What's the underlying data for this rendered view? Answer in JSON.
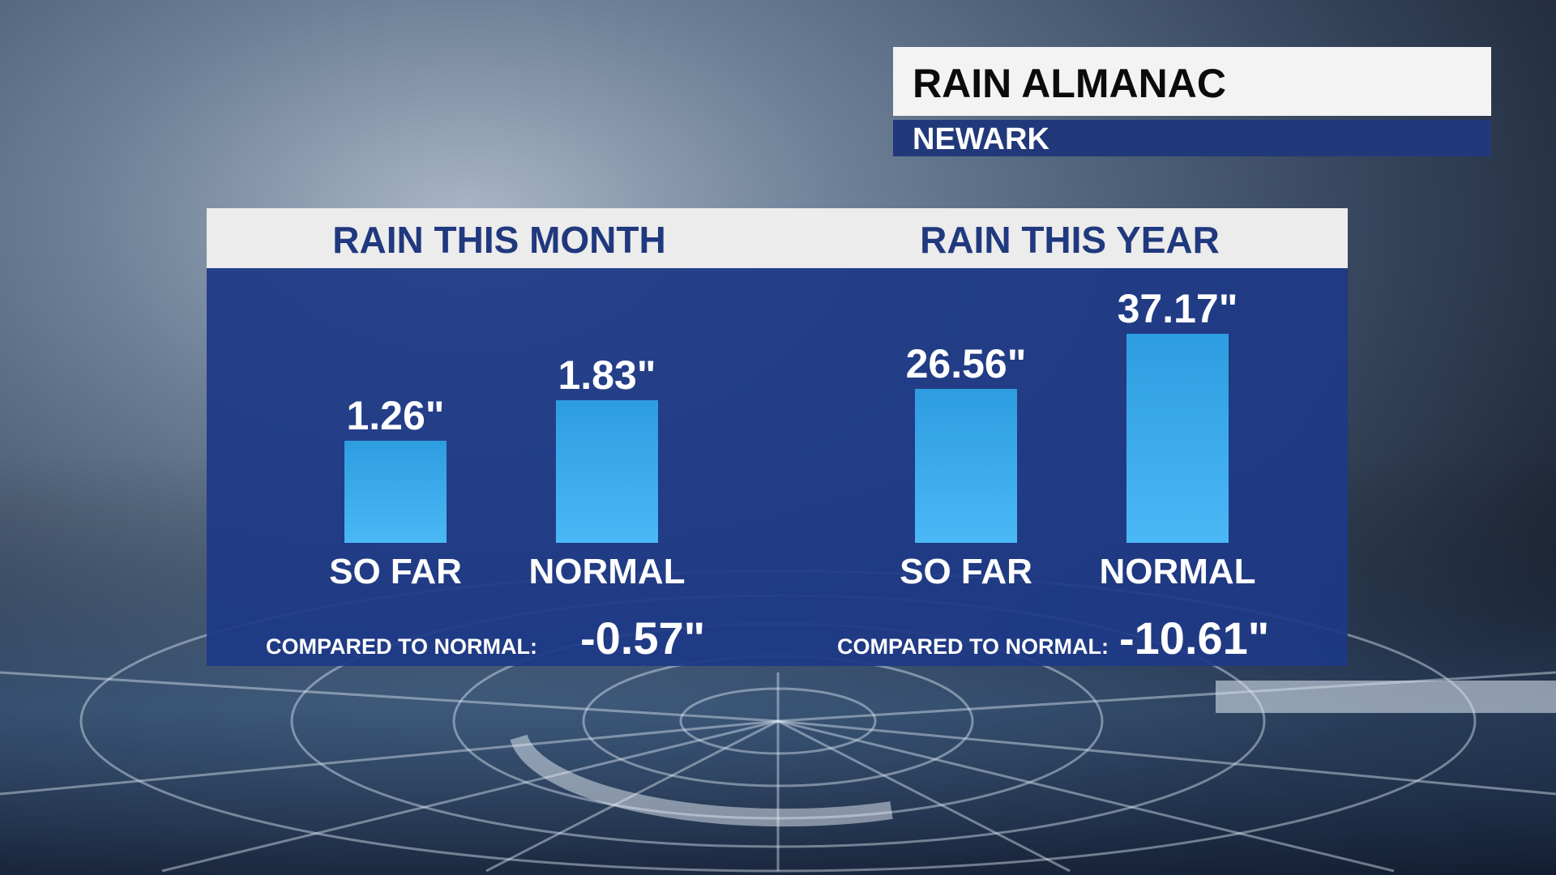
{
  "header": {
    "title": "RAIN ALMANAC",
    "location": "NEWARK"
  },
  "chart_data": [
    {
      "type": "bar",
      "title": "RAIN THIS MONTH",
      "categories": [
        "SO FAR",
        "NORMAL"
      ],
      "values": [
        1.26,
        1.83
      ],
      "value_labels": [
        "1.26\"",
        "1.83\""
      ],
      "units": "inches",
      "compare_label": "COMPARED TO NORMAL:",
      "compare_value": "-0.57\""
    },
    {
      "type": "bar",
      "title": "RAIN THIS YEAR",
      "categories": [
        "SO FAR",
        "NORMAL"
      ],
      "values": [
        26.56,
        37.17
      ],
      "value_labels": [
        "26.56\"",
        "37.17\""
      ],
      "units": "inches",
      "compare_label": "COMPARED TO NORMAL:",
      "compare_value": "-10.61\""
    }
  ],
  "colors": {
    "panel": "#1e3987",
    "bar": "#3aaeee",
    "title_bg": "#f3f3f3",
    "subtitle_bg": "#21397a"
  }
}
